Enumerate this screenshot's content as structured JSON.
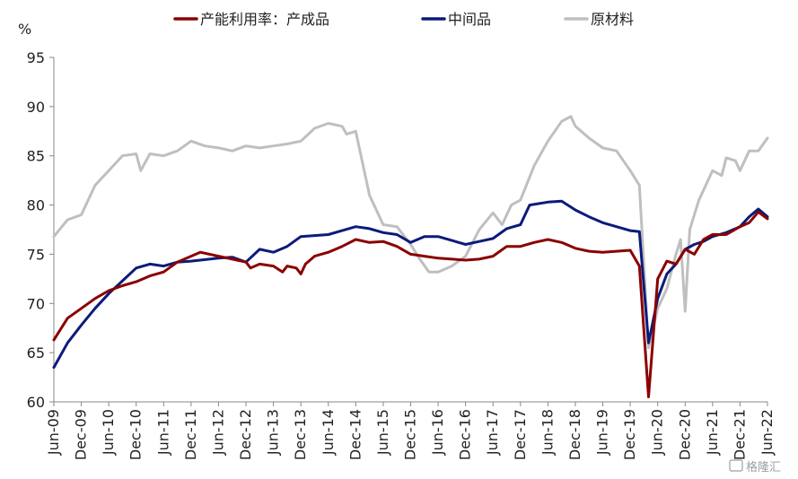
{
  "chart_data": {
    "type": "line",
    "unit_label": "%",
    "ylim": [
      60,
      95
    ],
    "yticks": [
      60,
      65,
      70,
      75,
      80,
      85,
      90,
      95
    ],
    "x_start": "Jun-09",
    "x_end": "Jun-22",
    "xtick_labels": [
      "Jun-09",
      "Dec-09",
      "Jun-10",
      "Dec-10",
      "Jun-11",
      "Dec-11",
      "Jun-12",
      "Dec-12",
      "Jun-13",
      "Dec-13",
      "Jun-14",
      "Dec-14",
      "Jun-15",
      "Dec-15",
      "Jun-16",
      "Dec-16",
      "Jun-17",
      "Dec-17",
      "Jun-18",
      "Dec-18",
      "Jun-19",
      "Dec-19",
      "Jun-20",
      "Dec-20",
      "Jun-21",
      "Dec-21",
      "Jun-22"
    ],
    "grid": false,
    "legend_position": "top",
    "series": [
      {
        "name": "产能利用率：产成品",
        "color": "#8b0000",
        "points": [
          [
            "Jun-09",
            66.3
          ],
          [
            "Sep-09",
            68.5
          ],
          [
            "Dec-09",
            69.5
          ],
          [
            "Mar-10",
            70.5
          ],
          [
            "Jun-10",
            71.3
          ],
          [
            "Sep-10",
            71.8
          ],
          [
            "Dec-10",
            72.2
          ],
          [
            "Mar-11",
            72.8
          ],
          [
            "Jun-11",
            73.2
          ],
          [
            "Sep-11",
            74.2
          ],
          [
            "Dec-11",
            74.8
          ],
          [
            "Feb-12",
            75.2
          ],
          [
            "Jun-12",
            74.8
          ],
          [
            "Sep-12",
            74.5
          ],
          [
            "Dec-12",
            74.2
          ],
          [
            "Jan-13",
            73.6
          ],
          [
            "Mar-13",
            74.0
          ],
          [
            "Jun-13",
            73.8
          ],
          [
            "Aug-13",
            73.2
          ],
          [
            "Sep-13",
            73.8
          ],
          [
            "Nov-13",
            73.6
          ],
          [
            "Dec-13",
            73.0
          ],
          [
            "Jan-14",
            74.0
          ],
          [
            "Mar-14",
            74.8
          ],
          [
            "Jun-14",
            75.2
          ],
          [
            "Sep-14",
            75.8
          ],
          [
            "Dec-14",
            76.5
          ],
          [
            "Mar-15",
            76.2
          ],
          [
            "Jun-15",
            76.3
          ],
          [
            "Sep-15",
            75.8
          ],
          [
            "Dec-15",
            75.0
          ],
          [
            "Mar-16",
            74.8
          ],
          [
            "Jun-16",
            74.6
          ],
          [
            "Sep-16",
            74.5
          ],
          [
            "Dec-16",
            74.4
          ],
          [
            "Mar-17",
            74.5
          ],
          [
            "Jun-17",
            74.8
          ],
          [
            "Sep-17",
            75.8
          ],
          [
            "Dec-17",
            75.8
          ],
          [
            "Mar-18",
            76.2
          ],
          [
            "Jun-18",
            76.5
          ],
          [
            "Sep-18",
            76.2
          ],
          [
            "Dec-18",
            75.6
          ],
          [
            "Mar-19",
            75.3
          ],
          [
            "Jun-19",
            75.2
          ],
          [
            "Sep-19",
            75.3
          ],
          [
            "Dec-19",
            75.4
          ],
          [
            "Feb-20",
            73.8
          ],
          [
            "Apr-20",
            60.5
          ],
          [
            "Jun-20",
            72.5
          ],
          [
            "Aug-20",
            74.3
          ],
          [
            "Oct-20",
            74.0
          ],
          [
            "Dec-20",
            75.5
          ],
          [
            "Feb-21",
            75.0
          ],
          [
            "Apr-21",
            76.5
          ],
          [
            "Jun-21",
            77.0
          ],
          [
            "Sep-21",
            77.0
          ],
          [
            "Dec-21",
            77.8
          ],
          [
            "Feb-22",
            78.2
          ],
          [
            "Apr-22",
            79.3
          ],
          [
            "Jun-22",
            78.6
          ]
        ]
      },
      {
        "name": "中间品",
        "color": "#0b1b7a",
        "points": [
          [
            "Jun-09",
            63.5
          ],
          [
            "Sep-09",
            66.0
          ],
          [
            "Dec-09",
            67.8
          ],
          [
            "Mar-10",
            69.5
          ],
          [
            "Jun-10",
            71.0
          ],
          [
            "Sep-10",
            72.3
          ],
          [
            "Dec-10",
            73.6
          ],
          [
            "Mar-11",
            74.0
          ],
          [
            "Jun-11",
            73.8
          ],
          [
            "Sep-11",
            74.2
          ],
          [
            "Dec-11",
            74.3
          ],
          [
            "Jun-12",
            74.6
          ],
          [
            "Sep-12",
            74.7
          ],
          [
            "Dec-12",
            74.2
          ],
          [
            "Mar-13",
            75.5
          ],
          [
            "Jun-13",
            75.2
          ],
          [
            "Sep-13",
            75.8
          ],
          [
            "Dec-13",
            76.8
          ],
          [
            "Jun-14",
            77.0
          ],
          [
            "Sep-14",
            77.4
          ],
          [
            "Dec-14",
            77.8
          ],
          [
            "Mar-15",
            77.6
          ],
          [
            "Jun-15",
            77.2
          ],
          [
            "Sep-15",
            77.0
          ],
          [
            "Dec-15",
            76.2
          ],
          [
            "Mar-16",
            76.8
          ],
          [
            "Jun-16",
            76.8
          ],
          [
            "Sep-16",
            76.4
          ],
          [
            "Dec-16",
            76.0
          ],
          [
            "Mar-17",
            76.3
          ],
          [
            "Jun-17",
            76.6
          ],
          [
            "Sep-17",
            77.6
          ],
          [
            "Dec-17",
            78.0
          ],
          [
            "Feb-18",
            80.0
          ],
          [
            "Jun-18",
            80.3
          ],
          [
            "Sep-18",
            80.4
          ],
          [
            "Dec-18",
            79.5
          ],
          [
            "Mar-19",
            78.8
          ],
          [
            "Jun-19",
            78.2
          ],
          [
            "Sep-19",
            77.8
          ],
          [
            "Dec-19",
            77.4
          ],
          [
            "Feb-20",
            77.3
          ],
          [
            "Apr-20",
            66.0
          ],
          [
            "Jun-20",
            70.5
          ],
          [
            "Aug-20",
            73.0
          ],
          [
            "Oct-20",
            74.0
          ],
          [
            "Dec-20",
            75.5
          ],
          [
            "Feb-21",
            76.0
          ],
          [
            "Apr-21",
            76.3
          ],
          [
            "Jun-21",
            76.8
          ],
          [
            "Sep-21",
            77.2
          ],
          [
            "Dec-21",
            77.8
          ],
          [
            "Feb-22",
            78.8
          ],
          [
            "Apr-22",
            79.6
          ],
          [
            "Jun-22",
            78.8
          ]
        ]
      },
      {
        "name": "原材料",
        "color": "#bfbfbf",
        "points": [
          [
            "Jun-09",
            76.8
          ],
          [
            "Sep-09",
            78.5
          ],
          [
            "Dec-09",
            79.0
          ],
          [
            "Mar-10",
            82.0
          ],
          [
            "Jun-10",
            83.5
          ],
          [
            "Sep-10",
            85.0
          ],
          [
            "Dec-10",
            85.2
          ],
          [
            "Jan-11",
            83.5
          ],
          [
            "Mar-11",
            85.2
          ],
          [
            "Jun-11",
            85.0
          ],
          [
            "Sep-11",
            85.5
          ],
          [
            "Dec-11",
            86.5
          ],
          [
            "Mar-12",
            86.0
          ],
          [
            "Jun-12",
            85.8
          ],
          [
            "Sep-12",
            85.5
          ],
          [
            "Dec-12",
            86.0
          ],
          [
            "Mar-13",
            85.8
          ],
          [
            "Jun-13",
            86.0
          ],
          [
            "Sep-13",
            86.2
          ],
          [
            "Dec-13",
            86.5
          ],
          [
            "Mar-14",
            87.8
          ],
          [
            "Jun-14",
            88.3
          ],
          [
            "Sep-14",
            88.0
          ],
          [
            "Oct-14",
            87.2
          ],
          [
            "Dec-14",
            87.5
          ],
          [
            "Mar-15",
            81.0
          ],
          [
            "Jun-15",
            78.0
          ],
          [
            "Sep-15",
            77.8
          ],
          [
            "Dec-15",
            76.0
          ],
          [
            "Feb-16",
            74.5
          ],
          [
            "Apr-16",
            73.2
          ],
          [
            "Jun-16",
            73.2
          ],
          [
            "Sep-16",
            73.8
          ],
          [
            "Dec-16",
            74.8
          ],
          [
            "Mar-17",
            77.5
          ],
          [
            "Jun-17",
            79.2
          ],
          [
            "Aug-17",
            78.0
          ],
          [
            "Oct-17",
            80.0
          ],
          [
            "Dec-17",
            80.5
          ],
          [
            "Mar-18",
            84.0
          ],
          [
            "Jun-18",
            86.5
          ],
          [
            "Sep-18",
            88.5
          ],
          [
            "Nov-18",
            89.0
          ],
          [
            "Dec-18",
            88.0
          ],
          [
            "Mar-19",
            86.8
          ],
          [
            "Jun-19",
            85.8
          ],
          [
            "Sep-19",
            85.5
          ],
          [
            "Dec-19",
            83.5
          ],
          [
            "Feb-20",
            82.0
          ],
          [
            "Apr-20",
            65.5
          ],
          [
            "Jun-20",
            69.5
          ],
          [
            "Aug-20",
            71.5
          ],
          [
            "Oct-20",
            75.0
          ],
          [
            "Nov-20",
            76.5
          ],
          [
            "Dec-20",
            69.2
          ],
          [
            "Jan-21",
            77.5
          ],
          [
            "Mar-21",
            80.5
          ],
          [
            "Jun-21",
            83.5
          ],
          [
            "Aug-21",
            83.0
          ],
          [
            "Sep-21",
            84.8
          ],
          [
            "Nov-21",
            84.5
          ],
          [
            "Dec-21",
            83.5
          ],
          [
            "Feb-22",
            85.5
          ],
          [
            "Apr-22",
            85.5
          ],
          [
            "Jun-22",
            86.8
          ]
        ]
      }
    ]
  },
  "watermark": "格隆汇"
}
